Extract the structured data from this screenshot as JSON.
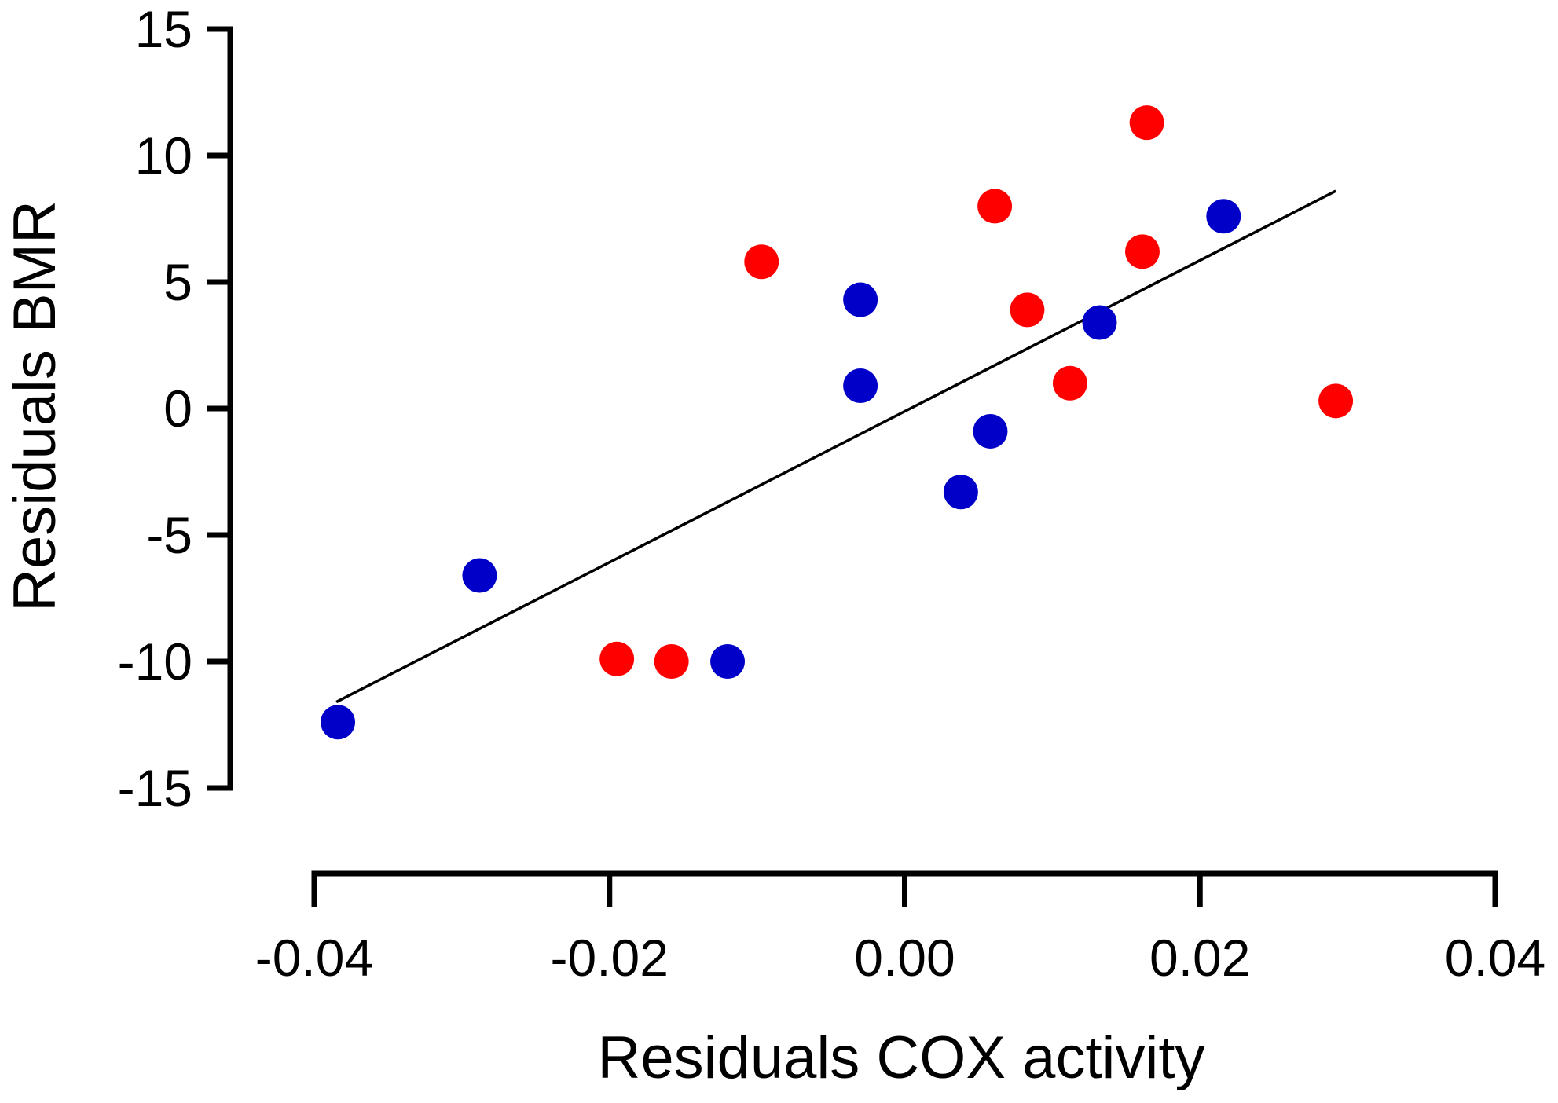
{
  "chart_data": {
    "type": "scatter",
    "title": "",
    "xlabel": "Residuals COX activity",
    "ylabel": "Residuals BMR",
    "xlim": [
      -0.04,
      0.04
    ],
    "ylim": [
      -15,
      15
    ],
    "xticks": [
      -0.04,
      -0.02,
      0.0,
      0.02,
      0.04
    ],
    "xtick_labels": [
      "-0.04",
      "-0.02",
      "0.00",
      "0.02",
      "0.04"
    ],
    "yticks": [
      -15,
      -10,
      -5,
      0,
      5,
      10,
      15
    ],
    "ytick_labels": [
      "-15",
      "-10",
      "-5",
      "0",
      "5",
      "10",
      "15"
    ],
    "grid": false,
    "legend": "none",
    "series": [
      {
        "name": "red group",
        "color": "#ff0000",
        "points": [
          {
            "x": -0.0195,
            "y": -9.9
          },
          {
            "x": -0.0158,
            "y": -10.0
          },
          {
            "x": -0.0097,
            "y": 5.8
          },
          {
            "x": 0.0061,
            "y": 8.0
          },
          {
            "x": 0.0083,
            "y": 3.9
          },
          {
            "x": 0.0112,
            "y": 1.0
          },
          {
            "x": 0.0161,
            "y": 6.2
          },
          {
            "x": 0.0164,
            "y": 11.3
          },
          {
            "x": 0.0292,
            "y": 0.3
          }
        ]
      },
      {
        "name": "blue group",
        "color": "#0000c8",
        "points": [
          {
            "x": -0.0384,
            "y": -12.4
          },
          {
            "x": -0.0288,
            "y": -6.6
          },
          {
            "x": -0.012,
            "y": -10.0
          },
          {
            "x": -0.003,
            "y": 4.3
          },
          {
            "x": -0.003,
            "y": 0.9
          },
          {
            "x": 0.0038,
            "y": -3.3
          },
          {
            "x": 0.0058,
            "y": -0.9
          },
          {
            "x": 0.0132,
            "y": 3.4
          },
          {
            "x": 0.0216,
            "y": 7.6
          }
        ]
      }
    ],
    "fit_line": {
      "x": [
        -0.0385,
        0.0292
      ],
      "y": [
        -11.6,
        8.6
      ],
      "color": "#000000"
    }
  }
}
